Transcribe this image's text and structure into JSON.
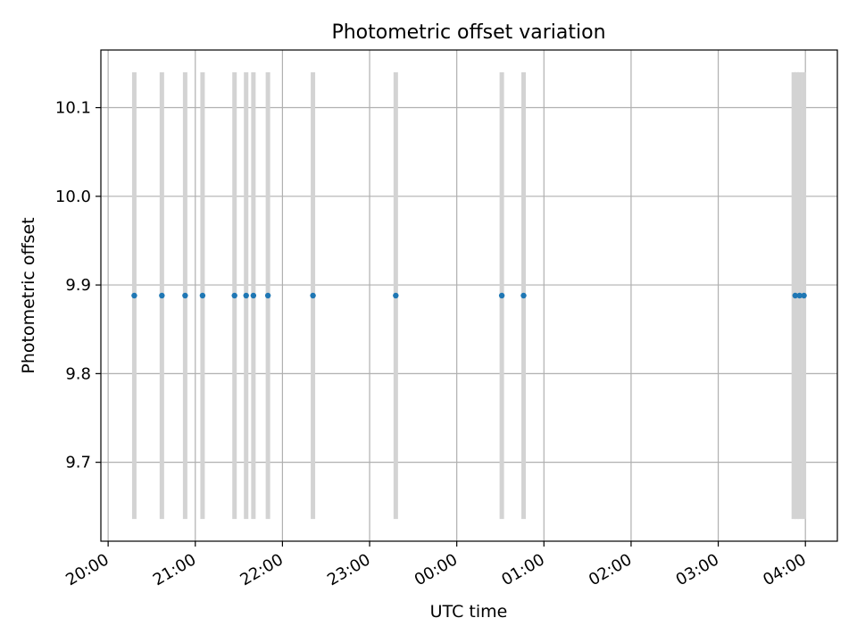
{
  "chart_data": {
    "type": "scatter",
    "title": "Photometric offset variation",
    "xlabel": "UTC time",
    "ylabel": "Photometric offset",
    "x_axis_type": "time",
    "xlim": [
      "19:55",
      "04:22"
    ],
    "ylim": [
      9.611,
      10.165
    ],
    "grid": true,
    "x_ticks": [
      "20:00",
      "21:00",
      "22:00",
      "23:00",
      "00:00",
      "01:00",
      "02:00",
      "03:00",
      "04:00"
    ],
    "y_ticks": [
      "9.7",
      "9.8",
      "9.9",
      "10.0",
      "10.1"
    ],
    "points": [
      {
        "x": "20:18",
        "y": 9.888
      },
      {
        "x": "20:37",
        "y": 9.888
      },
      {
        "x": "20:53",
        "y": 9.888
      },
      {
        "x": "21:05",
        "y": 9.888
      },
      {
        "x": "21:27",
        "y": 9.888
      },
      {
        "x": "21:35",
        "y": 9.888
      },
      {
        "x": "21:40",
        "y": 9.888
      },
      {
        "x": "21:50",
        "y": 9.888
      },
      {
        "x": "22:21",
        "y": 9.888
      },
      {
        "x": "23:18",
        "y": 9.888
      },
      {
        "x": "00:31",
        "y": 9.888
      },
      {
        "x": "00:46",
        "y": 9.888
      },
      {
        "x": "03:53",
        "y": 9.888
      },
      {
        "x": "03:56",
        "y": 9.888
      },
      {
        "x": "03:59",
        "y": 9.888
      }
    ],
    "vertical_bands": {
      "y_range": [
        9.636,
        10.14
      ],
      "x": [
        "20:18",
        "20:37",
        "20:53",
        "21:05",
        "21:27",
        "21:35",
        "21:40",
        "21:50",
        "22:21",
        "23:18",
        "00:31",
        "00:46",
        "03:52",
        "03:54",
        "03:56",
        "03:59"
      ]
    },
    "colors": {
      "points": "#1f77b4",
      "bands": "#d3d3d3",
      "grid": "#b0b0b0",
      "axes": "#000000"
    }
  }
}
